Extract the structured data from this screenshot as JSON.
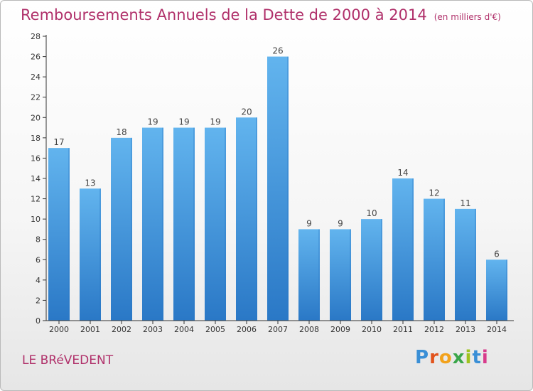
{
  "title": "Remboursements Annuels de la Dette de 2000 à 2014",
  "unit": "(en milliers d'€)",
  "commune": "LE BRéVEDENT",
  "logo": {
    "text": "Proxiti",
    "letters": [
      "P",
      "r",
      "o",
      "x",
      "i",
      "t",
      "i"
    ],
    "colors": [
      "#3a8fd6",
      "#e2531c",
      "#f2a21c",
      "#3aa64a",
      "#9fc21e",
      "#3a8fd6",
      "#d83b8c"
    ]
  },
  "colors": {
    "title": "#b0306a",
    "bar_light": "#62b4ee",
    "bar_dark": "#2a78c6",
    "axis": "#333333"
  },
  "chart_data": {
    "type": "bar",
    "categories": [
      "2000",
      "2001",
      "2002",
      "2003",
      "2004",
      "2005",
      "2006",
      "2007",
      "2008",
      "2009",
      "2010",
      "2011",
      "2012",
      "2013",
      "2014"
    ],
    "values": [
      17,
      13,
      18,
      19,
      19,
      19,
      20,
      26,
      9,
      9,
      10,
      14,
      12,
      11,
      6
    ],
    "ylim": [
      0,
      28
    ],
    "yticks": [
      0,
      2,
      4,
      6,
      8,
      10,
      12,
      14,
      16,
      18,
      20,
      22,
      24,
      26,
      28
    ],
    "data_labels": true,
    "grid": false,
    "legend": "none"
  }
}
